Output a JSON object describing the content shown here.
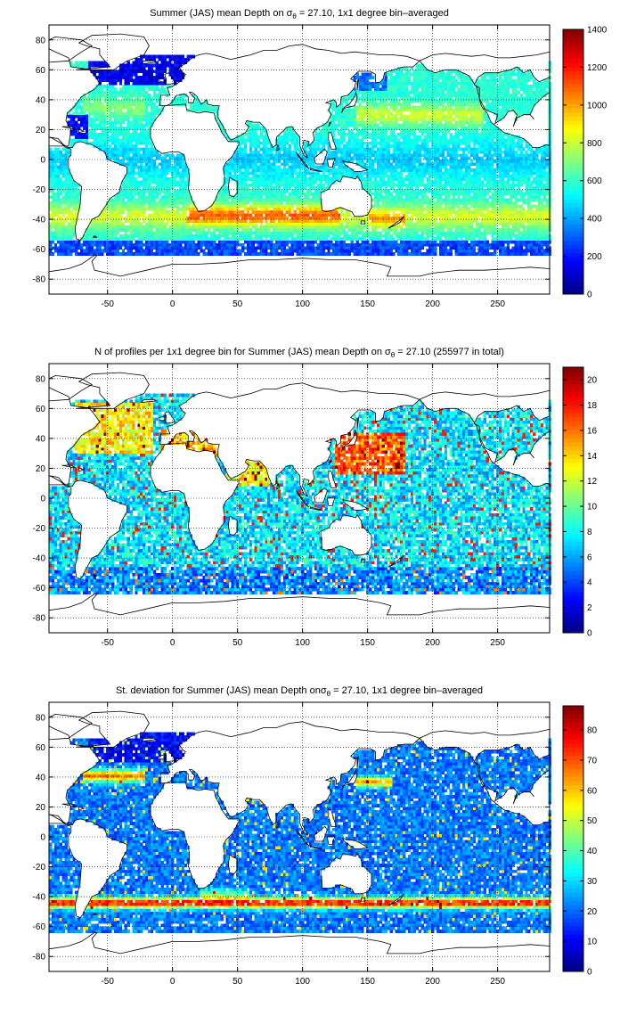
{
  "figure": {
    "background": "#ffffff",
    "colormap": "jet"
  },
  "chart_data": [
    {
      "type": "heatmap",
      "title_pre": "Summer (JAS) mean Depth on ",
      "title_sym": "σ",
      "title_sub": "θ",
      "title_post": " = 27.10, 1x1 degree bin–averaged",
      "variable": "mean depth",
      "xlim": [
        -95,
        290
      ],
      "ylim": [
        -90,
        90
      ],
      "xticks": [
        -50,
        0,
        50,
        100,
        150,
        200,
        250
      ],
      "yticks": [
        -80,
        -60,
        -40,
        -20,
        0,
        20,
        40,
        60,
        80
      ],
      "grid": true,
      "colorbar": {
        "min": 0,
        "max": 1400,
        "ticks": [
          0,
          200,
          400,
          600,
          800,
          1000,
          1200,
          1400
        ]
      }
    },
    {
      "type": "heatmap",
      "title_pre": "N of profiles per 1x1 degree bin for Summer (JAS) mean Depth on ",
      "title_sym": "σ",
      "title_sub": "θ",
      "title_post": " = 27.10 (255977 in total)",
      "variable": "profile count",
      "xlim": [
        -95,
        290
      ],
      "ylim": [
        -90,
        90
      ],
      "xticks": [
        -50,
        0,
        50,
        100,
        150,
        200,
        250
      ],
      "yticks": [
        -80,
        -60,
        -40,
        -20,
        0,
        20,
        40,
        60,
        80
      ],
      "grid": true,
      "colorbar": {
        "min": 0,
        "max": 21,
        "ticks": [
          0,
          2,
          4,
          6,
          8,
          10,
          12,
          14,
          16,
          18,
          20
        ]
      }
    },
    {
      "type": "heatmap",
      "title_pre": "St. deviation for Summer (JAS) mean Depth on",
      "title_sym": "σ",
      "title_sub": "θ",
      "title_post": " = 27.10, 1x1 degree bin–averaged",
      "variable": "standard deviation",
      "xlim": [
        -95,
        290
      ],
      "ylim": [
        -90,
        90
      ],
      "xticks": [
        -50,
        0,
        50,
        100,
        150,
        200,
        250
      ],
      "yticks": [
        -80,
        -60,
        -40,
        -20,
        0,
        20,
        40,
        60,
        80
      ],
      "grid": true,
      "colorbar": {
        "min": 0,
        "max": 88,
        "ticks": [
          0,
          10,
          20,
          30,
          40,
          50,
          60,
          70,
          80
        ]
      }
    }
  ]
}
